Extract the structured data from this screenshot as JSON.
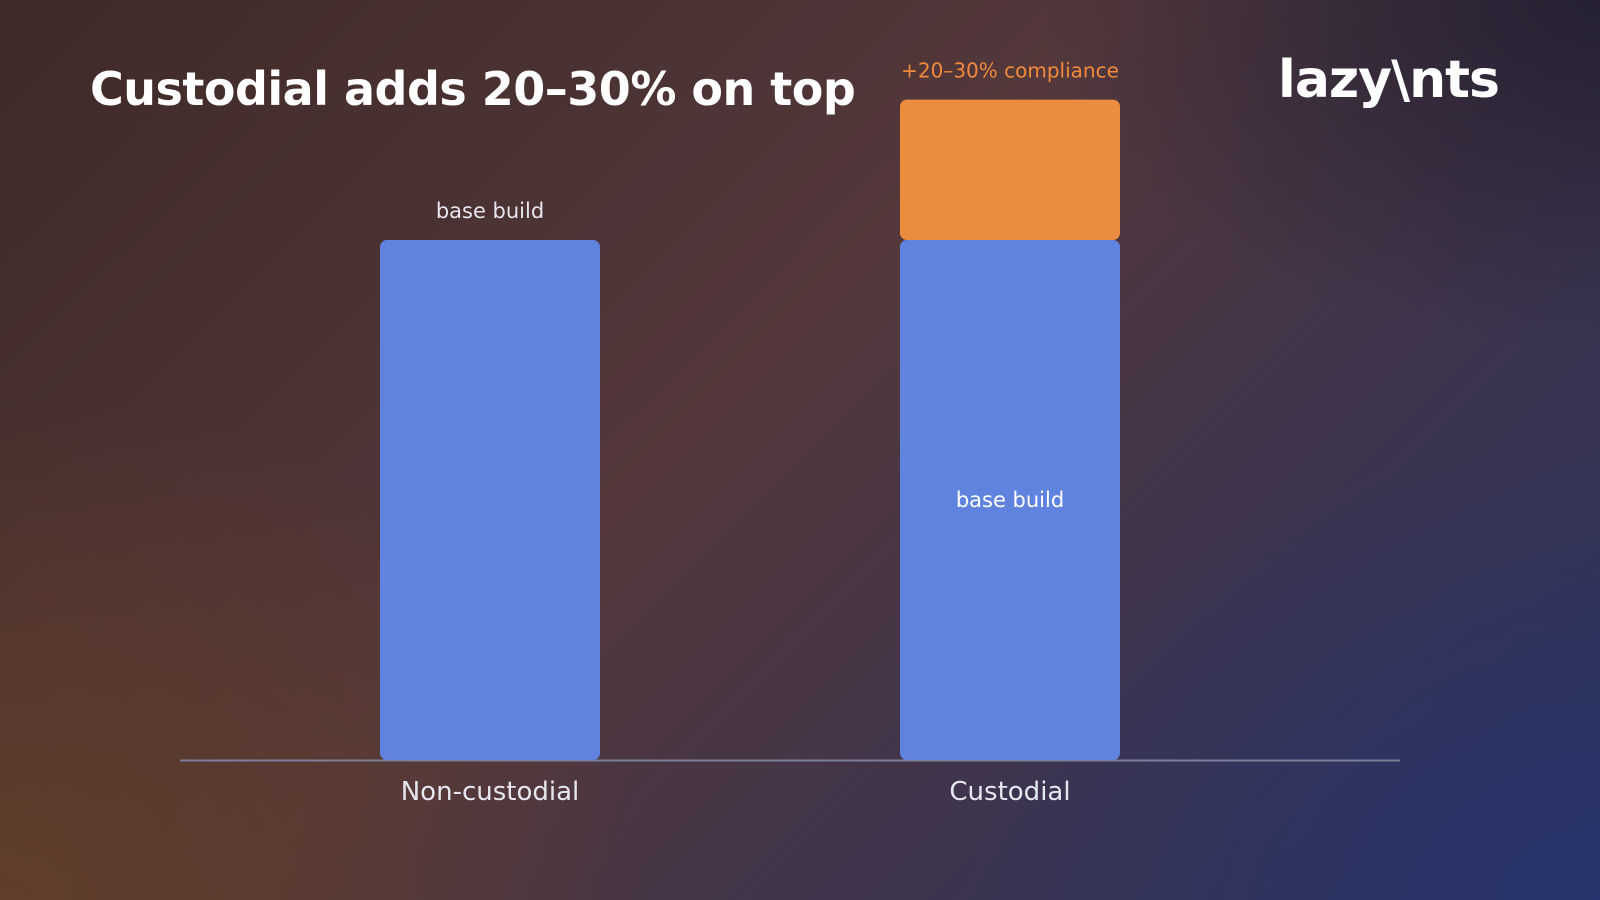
{
  "slide": {
    "title": "Custodial adds 20–30% on top",
    "logo_text": "lazy\\nts"
  },
  "colors": {
    "base": "#5f83de",
    "compliance": "#ec8c3e",
    "compliance_label": "#f08a3c",
    "label_text": "#e6e6ee",
    "axis": "#7b7f99"
  },
  "chart_data": {
    "type": "bar",
    "stacked": true,
    "title": "Custodial adds 20–30% on top",
    "xlabel": "",
    "ylabel": "",
    "categories": [
      "Non-custodial",
      "Custodial"
    ],
    "series": [
      {
        "name": "base build",
        "values": [
          100,
          100
        ]
      },
      {
        "name": "+20–30% compliance",
        "values": [
          0,
          27
        ]
      }
    ],
    "ylim": [
      0,
      130
    ],
    "annotations": [
      {
        "category": "Non-custodial",
        "text": "base build",
        "position": "above"
      },
      {
        "category": "Custodial",
        "text": "base build",
        "position": "inside"
      },
      {
        "category": "Custodial",
        "text": "+20–30% compliance",
        "position": "above"
      }
    ],
    "grid": false,
    "legend": "none"
  }
}
